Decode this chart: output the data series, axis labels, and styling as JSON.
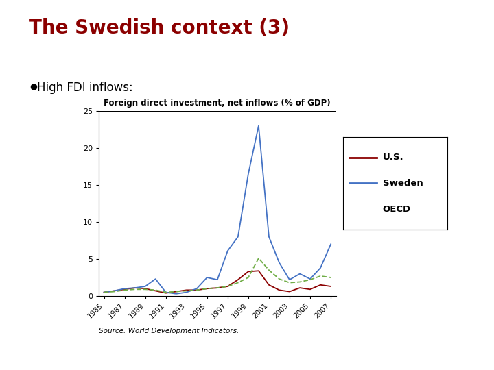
{
  "title_main": "The Swedish context (3)",
  "bullet_text": "High FDI inflows:",
  "chart_title": "Foreign direct investment, net inflows (% of GDP)",
  "source_text": "Source: World Development Indicators.",
  "years": [
    1985,
    1986,
    1987,
    1988,
    1989,
    1990,
    1991,
    1992,
    1993,
    1994,
    1995,
    1996,
    1997,
    1998,
    1999,
    2000,
    2001,
    2002,
    2003,
    2004,
    2005,
    2006,
    2007
  ],
  "us": [
    0.5,
    0.7,
    0.9,
    1.1,
    1.0,
    0.7,
    0.4,
    0.6,
    0.8,
    0.8,
    1.0,
    1.1,
    1.3,
    2.2,
    3.3,
    3.4,
    1.5,
    0.8,
    0.6,
    1.1,
    0.9,
    1.5,
    1.3
  ],
  "sweden": [
    0.5,
    0.7,
    1.0,
    1.1,
    1.3,
    2.3,
    0.5,
    0.3,
    0.5,
    1.0,
    2.5,
    2.2,
    6.1,
    8.0,
    16.5,
    23.0,
    8.0,
    4.5,
    2.2,
    3.0,
    2.3,
    3.8,
    7.0
  ],
  "oecd": [
    0.5,
    0.6,
    0.8,
    0.9,
    0.9,
    0.8,
    0.5,
    0.6,
    0.7,
    0.8,
    1.0,
    1.1,
    1.3,
    1.8,
    2.5,
    5.1,
    3.5,
    2.3,
    1.8,
    1.9,
    2.2,
    2.7,
    2.5
  ],
  "us_color": "#8B0000",
  "sweden_color": "#4472C4",
  "oecd_color": "#70AD47",
  "ylim": [
    0,
    25
  ],
  "yticks": [
    0,
    5,
    10,
    15,
    20,
    25
  ],
  "background_color": "#FFFFFF",
  "left_bar_color": "#9C8E80",
  "title_color": "#8B0000"
}
